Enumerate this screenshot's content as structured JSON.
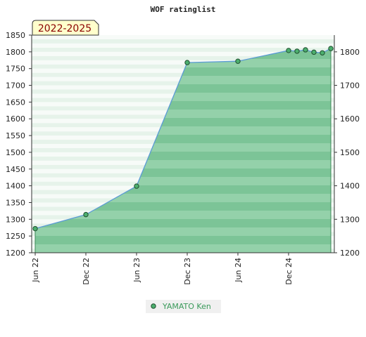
{
  "chart_data": {
    "type": "area",
    "title": "WOF ratinglist",
    "period_badge": "2022-2025",
    "xlabel": "",
    "ylabel": "",
    "ylim": [
      1200,
      1850
    ],
    "y_ticks_left": [
      1200,
      1250,
      1300,
      1350,
      1400,
      1450,
      1500,
      1550,
      1600,
      1650,
      1700,
      1750,
      1800,
      1850
    ],
    "y_ticks_right": [
      1200,
      1300,
      1400,
      1500,
      1600,
      1700,
      1800
    ],
    "x_ticks": [
      {
        "label": "Jun 22",
        "date": "2022-06"
      },
      {
        "label": "Dec 22",
        "date": "2022-12"
      },
      {
        "label": "Jun 23",
        "date": "2023-06"
      },
      {
        "label": "Dec 23",
        "date": "2023-12"
      },
      {
        "label": "Jun 24",
        "date": "2024-06"
      },
      {
        "label": "Dec 24",
        "date": "2024-12"
      }
    ],
    "grid": true,
    "legend_position": "bottom-center",
    "series": [
      {
        "name": "YAMATO Ken",
        "color": "#5ab07a",
        "line_color": "#5b9bd5",
        "points": [
          {
            "date": "2022-06",
            "value": 1272
          },
          {
            "date": "2022-12",
            "value": 1314
          },
          {
            "date": "2023-06",
            "value": 1399
          },
          {
            "date": "2023-12",
            "value": 1768
          },
          {
            "date": "2024-06",
            "value": 1772
          },
          {
            "date": "2024-12",
            "value": 1804
          },
          {
            "date": "2025-01",
            "value": 1802
          },
          {
            "date": "2025-02",
            "value": 1806
          },
          {
            "date": "2025-03",
            "value": 1799
          },
          {
            "date": "2025-04",
            "value": 1797
          },
          {
            "date": "2025-05",
            "value": 1810
          }
        ]
      }
    ]
  }
}
